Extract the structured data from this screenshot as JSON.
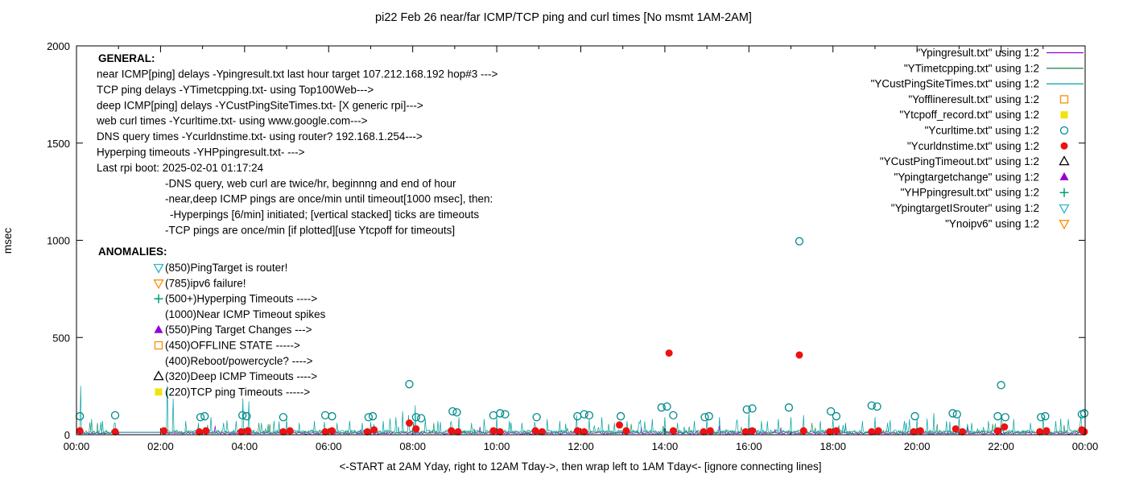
{
  "title": "pi22 Feb 26  near/far ICMP/TCP ping and curl times [No msmt 1AM-2AM]",
  "axes": {
    "ylabel": "msec",
    "xlabel_note": "<-START at 2AM Yday, right to 12AM Tday->, then wrap left to 1AM Tday<- [ignore connecting lines]",
    "y_ticks": [
      0,
      500,
      1000,
      1500,
      2000
    ],
    "x_ticks": [
      "00:00",
      "02:00",
      "04:00",
      "06:00",
      "08:00",
      "10:00",
      "12:00",
      "14:00",
      "16:00",
      "18:00",
      "20:00",
      "22:00",
      "00:00"
    ]
  },
  "legend": [
    {
      "label": "\"Ypingresult.txt\" using 1:2",
      "marker": "line",
      "color": "#9400d3"
    },
    {
      "label": "\"YTimetcpping.txt\" using 1:2",
      "marker": "line",
      "color": "#2e8b57"
    },
    {
      "label": "\"YCustPingSiteTimes.txt\" using 1:2",
      "marker": "line",
      "color": "#00a0a0"
    },
    {
      "label": "\"Yofflineresult.txt\" using 1:2",
      "marker": "square-open",
      "color": "#ff8c00"
    },
    {
      "label": "\"Ytcpoff_record.txt\" using 1:2",
      "marker": "square-filled",
      "color": "#efe410"
    },
    {
      "label": "\"Ycurltime.txt\" using 1:2",
      "marker": "circle-open",
      "color": "#008b8b"
    },
    {
      "label": "\"Ycurldnstime.txt\" using 1:2",
      "marker": "circle-filled",
      "color": "#ee1111"
    },
    {
      "label": "\"YCustPingTimeout.txt\" using 1:2",
      "marker": "triangle-open",
      "color": "#000000"
    },
    {
      "label": "\"Ypingtargetchange\" using 1:2",
      "marker": "triangle-filled",
      "color": "#9400d3"
    },
    {
      "label": "\"YHPpingresult.txt\" using 1:2",
      "marker": "plus",
      "color": "#009e73"
    },
    {
      "label": "\"YpingtargetISrouter\" using 1:2",
      "marker": "triangle-down-open",
      "color": "#30b8c8"
    },
    {
      "label": "\"Ynoipv6\" using 1:2",
      "marker": "triangle-down-open",
      "color": "#ff8c00"
    }
  ],
  "annotations": {
    "general_title": "GENERAL:",
    "general_lines": [
      {
        "indent": 0,
        "text": "near ICMP[ping] delays -Ypingresult.txt last hour target 107.212.168.192 hop#3 --->"
      },
      {
        "indent": 0,
        "text": "TCP ping delays -YTimetcpping.txt- using Top100Web--->"
      },
      {
        "indent": 0,
        "text": "deep ICMP[ping] delays -YCustPingSiteTimes.txt- [X generic rpi]--->"
      },
      {
        "indent": 0,
        "text": "web curl times -Ycurltime.txt- using www.google.com--->"
      },
      {
        "indent": 0,
        "text": "DNS query times -Ycurldnstime.txt- using router? 192.168.1.254--->"
      },
      {
        "indent": 0,
        "text": "Hyperping timeouts -YHPpingresult.txt- --->"
      },
      {
        "indent": 0,
        "text": "Last rpi boot: 2025-02-01 01:17:24"
      },
      {
        "indent": 1,
        "text": "-DNS query, web curl are twice/hr, beginnng and end of hour"
      },
      {
        "indent": 1,
        "text": "-near,deep ICMP pings are once/min until timeout[1000 msec], then:"
      },
      {
        "indent": 2,
        "text": "-Hyperpings [6/min] initiated; [vertical stacked] ticks are timeouts"
      },
      {
        "indent": 1,
        "text": "-TCP pings are once/min [if plotted][use Ytcpoff for timeouts]"
      }
    ],
    "anomalies_title": "ANOMALIES:",
    "anomalies": [
      {
        "icon": "triangle-down-open",
        "color": "#30b8c8",
        "text": "(850)PingTarget is router!"
      },
      {
        "icon": "triangle-down-open",
        "color": "#ff8c00",
        "text": "(785)ipv6 failure!"
      },
      {
        "icon": "plus",
        "color": "#009e73",
        "text": "(500+)Hyperping Timeouts ---->"
      },
      {
        "icon": "none",
        "color": "",
        "text": "(1000)Near ICMP Timeout spikes"
      },
      {
        "icon": "triangle-filled",
        "color": "#9400d3",
        "text": "(550)Ping Target Changes --->"
      },
      {
        "icon": "square-open",
        "color": "#ff8c00",
        "text": "(450)OFFLINE STATE ----->"
      },
      {
        "icon": "none",
        "color": "",
        "text": "(400)Reboot/powercycle? ---->"
      },
      {
        "icon": "triangle-open",
        "color": "#000000",
        "text": "(320)Deep ICMP Timeouts ---->"
      },
      {
        "icon": "square-filled",
        "color": "#efe410",
        "text": "(220)TCP ping Timeouts ----->"
      }
    ]
  },
  "chart_data": {
    "type": "line+scatter",
    "title": "pi22 Feb 26  near/far ICMP/TCP ping and curl times [No msmt 1AM-2AM]",
    "xlabel": "<-START at 2AM Yday, right to 12AM Tday->, then wrap left to 1AM Tday<- [ignore connecting lines]",
    "ylabel": "msec",
    "x_unit": "hours",
    "xlim": [
      0,
      24
    ],
    "ylim": [
      0,
      2000
    ],
    "grid": false,
    "legend_position": "top-right-inside",
    "no_measurement_gap_hours": [
      1.0,
      2.05
    ],
    "rng_seed": 1337,
    "line_series": [
      {
        "name": "Ypingresult.txt",
        "color": "#9400d3",
        "base": 3,
        "noise": 10,
        "spike_rate": 0.01,
        "spike_scale": 3,
        "spikes": [
          [
            3.3,
            45
          ],
          [
            9.6,
            40
          ],
          [
            15.3,
            45
          ],
          [
            21.2,
            40
          ]
        ]
      },
      {
        "name": "YTimetcpping.txt",
        "color": "#2e8b57",
        "base": 5,
        "noise": 16,
        "spike_rate": 0.02,
        "spike_scale": 3,
        "spikes": [
          [
            0.5,
            60
          ],
          [
            4.6,
            55
          ],
          [
            8.5,
            60
          ],
          [
            13.2,
            55
          ],
          [
            17.5,
            60
          ],
          [
            21.8,
            55
          ]
        ]
      },
      {
        "name": "YCustPingSiteTimes.txt",
        "color": "#00a0a0",
        "base": 5,
        "noise": 20,
        "spike_rate": 0.05,
        "spike_scale": 3.5,
        "spikes": [
          [
            0.1,
            250
          ],
          [
            0.35,
            80
          ],
          [
            0.62,
            70
          ],
          [
            0.9,
            60
          ],
          [
            2.15,
            250
          ],
          [
            2.3,
            185
          ],
          [
            2.6,
            70
          ],
          [
            2.9,
            60
          ],
          [
            3.2,
            90
          ],
          [
            3.5,
            60
          ],
          [
            3.8,
            70
          ],
          [
            3.95,
            185
          ],
          [
            4.1,
            170
          ],
          [
            4.4,
            60
          ],
          [
            4.7,
            70
          ],
          [
            5.0,
            80
          ],
          [
            5.3,
            60
          ],
          [
            5.65,
            70
          ],
          [
            5.9,
            65
          ],
          [
            6.2,
            60
          ],
          [
            6.5,
            70
          ],
          [
            6.8,
            60
          ],
          [
            7.0,
            65
          ],
          [
            7.3,
            70
          ],
          [
            7.6,
            90
          ],
          [
            7.75,
            120
          ],
          [
            7.9,
            100
          ],
          [
            8.05,
            150
          ],
          [
            8.3,
            80
          ],
          [
            8.6,
            70
          ],
          [
            8.9,
            60
          ],
          [
            9.1,
            90
          ],
          [
            9.4,
            60
          ],
          [
            9.7,
            80
          ],
          [
            10.0,
            90
          ],
          [
            10.3,
            70
          ],
          [
            10.6,
            60
          ],
          [
            10.9,
            65
          ],
          [
            11.2,
            80
          ],
          [
            11.5,
            70
          ],
          [
            11.9,
            100
          ],
          [
            12.2,
            80
          ],
          [
            12.5,
            90
          ],
          [
            12.8,
            60
          ],
          [
            13.1,
            70
          ],
          [
            13.4,
            60
          ],
          [
            13.7,
            80
          ],
          [
            14.0,
            90
          ],
          [
            14.3,
            60
          ],
          [
            14.7,
            70
          ],
          [
            15.0,
            80
          ],
          [
            15.3,
            90
          ],
          [
            15.7,
            60
          ],
          [
            16.0,
            110
          ],
          [
            16.3,
            70
          ],
          [
            16.7,
            80
          ],
          [
            17.0,
            90
          ],
          [
            17.3,
            100
          ],
          [
            17.7,
            70
          ],
          [
            18.0,
            80
          ],
          [
            18.3,
            60
          ],
          [
            18.7,
            70
          ],
          [
            19.0,
            90
          ],
          [
            19.3,
            60
          ],
          [
            19.7,
            70
          ],
          [
            20.0,
            80
          ],
          [
            20.4,
            110
          ],
          [
            20.7,
            70
          ],
          [
            21.0,
            90
          ],
          [
            21.3,
            60
          ],
          [
            21.7,
            70
          ],
          [
            22.0,
            100
          ],
          [
            22.3,
            80
          ],
          [
            22.7,
            60
          ],
          [
            23.0,
            90
          ],
          [
            23.3,
            70
          ],
          [
            23.6,
            80
          ],
          [
            23.9,
            100
          ]
        ]
      }
    ],
    "scatter_series": [
      {
        "name": "Ycurltime.txt",
        "marker": "circle-open",
        "color": "#008b8b",
        "points": [
          [
            0.08,
            95
          ],
          [
            0.92,
            100
          ],
          [
            2.95,
            90
          ],
          [
            3.05,
            95
          ],
          [
            3.95,
            100
          ],
          [
            4.05,
            95
          ],
          [
            4.92,
            90
          ],
          [
            5.92,
            100
          ],
          [
            6.08,
            95
          ],
          [
            6.95,
            90
          ],
          [
            7.05,
            95
          ],
          [
            7.92,
            260
          ],
          [
            8.08,
            90
          ],
          [
            8.2,
            85
          ],
          [
            8.95,
            120
          ],
          [
            9.05,
            115
          ],
          [
            9.92,
            100
          ],
          [
            10.08,
            110
          ],
          [
            10.2,
            105
          ],
          [
            10.95,
            90
          ],
          [
            11.92,
            95
          ],
          [
            12.08,
            105
          ],
          [
            12.2,
            100
          ],
          [
            12.95,
            95
          ],
          [
            13.92,
            140
          ],
          [
            14.05,
            145
          ],
          [
            14.2,
            100
          ],
          [
            14.95,
            90
          ],
          [
            15.05,
            95
          ],
          [
            15.95,
            130
          ],
          [
            16.08,
            135
          ],
          [
            16.95,
            140
          ],
          [
            17.2,
            995
          ],
          [
            17.95,
            120
          ],
          [
            18.08,
            95
          ],
          [
            18.92,
            150
          ],
          [
            19.05,
            145
          ],
          [
            19.95,
            95
          ],
          [
            20.85,
            110
          ],
          [
            20.95,
            105
          ],
          [
            21.92,
            95
          ],
          [
            22.0,
            255
          ],
          [
            22.1,
            90
          ],
          [
            22.95,
            90
          ],
          [
            23.05,
            95
          ],
          [
            23.92,
            105
          ],
          [
            23.98,
            110
          ]
        ]
      },
      {
        "name": "Ycurldnstime.txt",
        "marker": "circle-filled",
        "color": "#ee1111",
        "points": [
          [
            0.08,
            20
          ],
          [
            0.92,
            15
          ],
          [
            2.08,
            20
          ],
          [
            2.92,
            15
          ],
          [
            3.08,
            20
          ],
          [
            3.92,
            15
          ],
          [
            4.08,
            20
          ],
          [
            4.92,
            15
          ],
          [
            5.08,
            20
          ],
          [
            5.92,
            15
          ],
          [
            6.08,
            20
          ],
          [
            6.92,
            15
          ],
          [
            7.08,
            25
          ],
          [
            7.92,
            60
          ],
          [
            8.08,
            30
          ],
          [
            8.92,
            20
          ],
          [
            9.08,
            15
          ],
          [
            9.92,
            20
          ],
          [
            10.08,
            15
          ],
          [
            10.92,
            20
          ],
          [
            11.08,
            15
          ],
          [
            11.92,
            20
          ],
          [
            12.08,
            15
          ],
          [
            12.92,
            50
          ],
          [
            13.08,
            20
          ],
          [
            14.1,
            420
          ],
          [
            14.2,
            20
          ],
          [
            14.92,
            15
          ],
          [
            15.08,
            20
          ],
          [
            15.92,
            15
          ],
          [
            16.08,
            20
          ],
          [
            17.2,
            410
          ],
          [
            17.3,
            20
          ],
          [
            17.92,
            15
          ],
          [
            18.08,
            20
          ],
          [
            18.92,
            15
          ],
          [
            19.08,
            20
          ],
          [
            19.92,
            15
          ],
          [
            20.08,
            20
          ],
          [
            20.92,
            30
          ],
          [
            21.08,
            15
          ],
          [
            21.92,
            20
          ],
          [
            22.08,
            40
          ],
          [
            22.92,
            15
          ],
          [
            23.08,
            20
          ],
          [
            23.92,
            25
          ],
          [
            23.98,
            15
          ]
        ]
      },
      {
        "name": "Yofflineresult.txt",
        "marker": "square-open",
        "color": "#ff8c00",
        "points": []
      },
      {
        "name": "Ytcpoff_record.txt",
        "marker": "square-filled",
        "color": "#efe410",
        "points": []
      },
      {
        "name": "YCustPingTimeout.txt",
        "marker": "triangle-open",
        "color": "#000000",
        "points": []
      },
      {
        "name": "Ypingtargetchange",
        "marker": "triangle-filled",
        "color": "#9400d3",
        "points": []
      },
      {
        "name": "YHPpingresult.txt",
        "marker": "plus",
        "color": "#009e73",
        "points": []
      },
      {
        "name": "YpingtargetISrouter",
        "marker": "triangle-down-open",
        "color": "#30b8c8",
        "points": []
      },
      {
        "name": "Ynoipv6",
        "marker": "triangle-down-open",
        "color": "#ff8c00",
        "points": []
      }
    ]
  }
}
